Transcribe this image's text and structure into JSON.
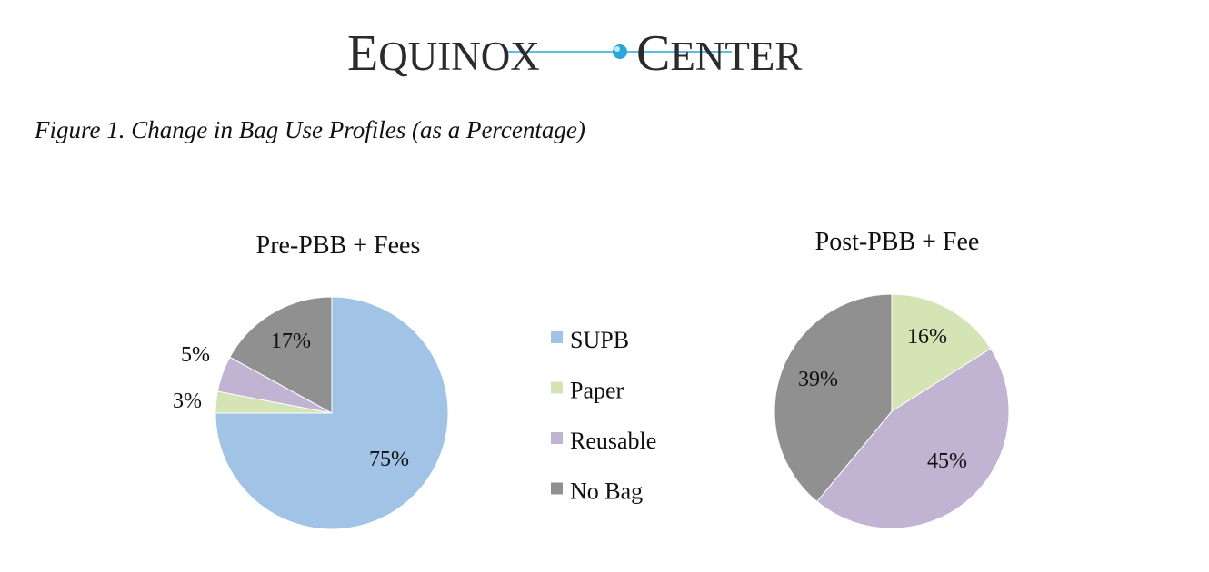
{
  "logo": {
    "left": "EQUINOX",
    "right": "CENTER"
  },
  "figure_title": "Figure 1. Change in Bag Use Profiles (as a Percentage)",
  "colors": {
    "SUPB": "#a0c3e6",
    "Paper": "#d5e4b4",
    "Reusable": "#c1b4d3",
    "No Bag": "#909090",
    "logo_text": "#2b2b2b",
    "logo_accent": "#2aa7d9"
  },
  "chart_data": [
    {
      "type": "pie",
      "title": "Pre-PBB + Fees",
      "categories": [
        "SUPB",
        "Paper",
        "Reusable",
        "No Bag"
      ],
      "values": [
        75,
        3,
        5,
        17
      ],
      "data_labels": [
        "75%",
        "3%",
        "5%",
        "17%"
      ],
      "legend_position": "center-between-charts"
    },
    {
      "type": "pie",
      "title": "Post-PBB + Fee",
      "categories": [
        "SUPB",
        "Paper",
        "Reusable",
        "No Bag"
      ],
      "values": [
        0,
        16,
        45,
        39
      ],
      "data_labels": [
        "",
        "16%",
        "45%",
        "39%"
      ],
      "legend_position": "center-between-charts"
    }
  ],
  "legend": [
    "SUPB",
    "Paper",
    "Reusable",
    "No Bag"
  ]
}
